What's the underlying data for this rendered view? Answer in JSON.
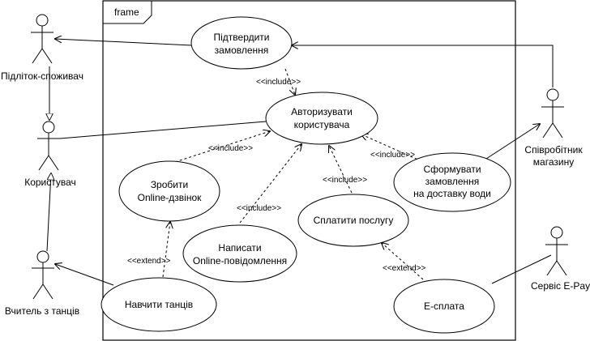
{
  "frame": {
    "title": "frame"
  },
  "actors": {
    "teen": {
      "label": "Підліток-споживач"
    },
    "user": {
      "label": "Користувач"
    },
    "teacher": {
      "label": "Вчитель з танців"
    },
    "employee": {
      "label_line1": "Співробітник",
      "label_line2": "магазину"
    },
    "epay": {
      "label": "Сервіс E-Pay"
    }
  },
  "use_cases": {
    "confirm": {
      "line1": "Підтвердити",
      "line2": "замовлення"
    },
    "authorize": {
      "line1": "Авторизувати",
      "line2": "користувача"
    },
    "call": {
      "line1": "Зробити",
      "line2": "Online-дзвінок"
    },
    "message": {
      "line1": "Написати",
      "line2": "Online-повідомлення"
    },
    "pay": {
      "line1": "Сплатити послугу"
    },
    "form_order": {
      "line1": "Сформувати",
      "line2": "замовлення",
      "line3": "на доставку води"
    },
    "teach": {
      "line1": "Навчити танців"
    },
    "epayment": {
      "line1": "Е-сплата"
    }
  },
  "stereotypes": {
    "include": "<<include>>",
    "extend": "<<extend>>"
  }
}
